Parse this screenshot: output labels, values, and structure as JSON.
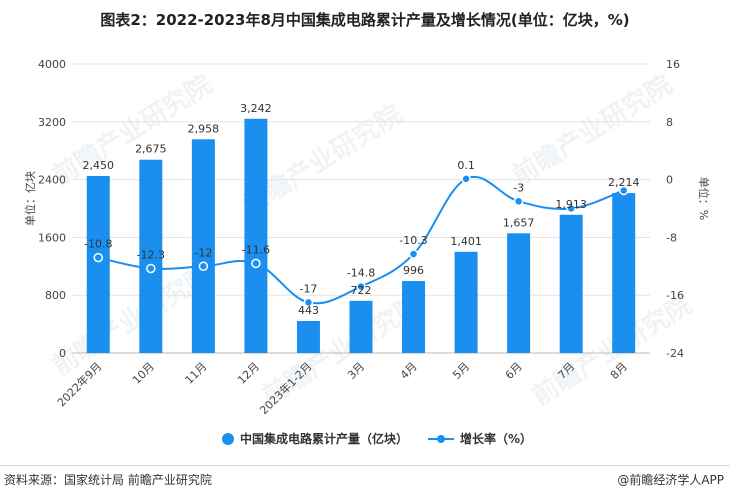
{
  "title": "图表2：2022-2023年8月中国集成电路累计产量及增长情况(单位：亿块，%)",
  "source": "资料来源：国家统计局 前瞻产业研究院",
  "brand": "@前瞻经济学人APP",
  "watermark": "前瞻产业研究院",
  "colors": {
    "bar": "#1a8fef",
    "line": "#1a8fef",
    "grid": "#e3e3e3",
    "text": "#444444"
  },
  "chart_data": {
    "type": "bar+line",
    "categories": [
      "2022年9月",
      "10月",
      "11月",
      "12月",
      "2023年1-2月",
      "3月",
      "4月",
      "5月",
      "6月",
      "7月",
      "8月"
    ],
    "series": [
      {
        "name": "中国集成电路累计产量（亿块）",
        "type": "bar",
        "axis": "left",
        "values": [
          2450,
          2675,
          2958,
          3242,
          443,
          722,
          996,
          1401,
          1657,
          1913,
          2214
        ],
        "labels": [
          "2,450",
          "2,675",
          "2,958",
          "3,242",
          "443",
          "722",
          "996",
          "1,401",
          "1,657",
          "1,913",
          "2,214"
        ]
      },
      {
        "name": "增长率（%）",
        "type": "line",
        "axis": "right",
        "values": [
          -10.8,
          -12.3,
          -12,
          -11.6,
          -17,
          -14.8,
          -10.3,
          0.1,
          -3,
          -4,
          -1.5
        ],
        "labels": [
          "-10.8",
          "-12.3",
          "-12",
          "-11.6",
          "-17",
          "-14.8",
          "-10.3",
          "0.1",
          "-3",
          "",
          ""
        ]
      }
    ],
    "y_left": {
      "label": "单位：亿块",
      "ticks": [
        "0",
        "800",
        "1600",
        "2400",
        "3200",
        "4000"
      ],
      "lim": [
        0,
        4000
      ]
    },
    "y_right": {
      "label": "单位：%",
      "ticks": [
        "-24",
        "-16",
        "-8",
        "0",
        "8",
        "16"
      ],
      "lim": [
        -24,
        16
      ]
    },
    "legend_position": "bottom-center",
    "grid": true
  }
}
